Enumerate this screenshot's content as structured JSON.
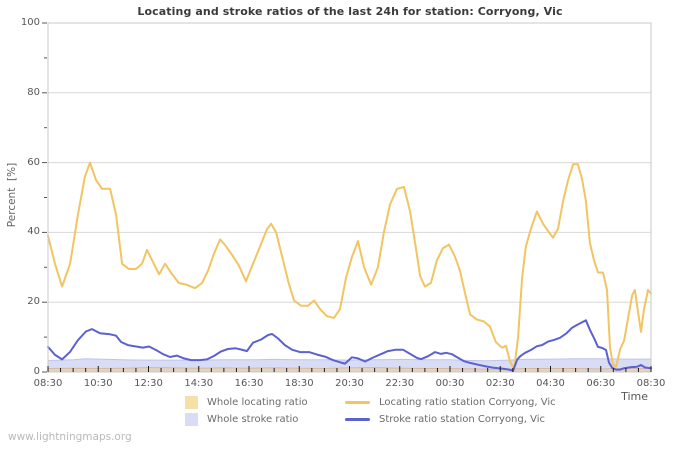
{
  "page": {
    "watermark": "www.lightningmaps.org"
  },
  "chart_data": {
    "type": "line",
    "title": "Locating and stroke ratios of the last 24h for station: Corryong, Vic",
    "xlabel": "Time",
    "ylabel": "Percent  [%]",
    "ylim": [
      0,
      100
    ],
    "x_hours_span": 24,
    "grid": "horizontal",
    "legend_position": "bottom",
    "y_ticks": [
      0,
      20,
      40,
      60,
      80,
      100
    ],
    "x_ticks": [
      "08:30",
      "10:30",
      "12:30",
      "14:30",
      "16:30",
      "18:30",
      "20:30",
      "22:30",
      "00:30",
      "02:30",
      "04:30",
      "06:30",
      "08:30"
    ],
    "colors": {
      "grid": "#d8d8d8",
      "plot_border": "#c8c8c8",
      "tick": "#1a1a1a",
      "axis_text": "#575757",
      "whole_locating_fill": "#f7dfa8",
      "whole_stroke_fill": "#d8dcf5",
      "locating_line": "#f2c462",
      "stroke_line": "#5b61cf"
    },
    "legend": [
      {
        "swatch": "area",
        "color": "#f7dfa8",
        "label": "Whole locating ratio"
      },
      {
        "swatch": "line",
        "color": "#f2c462",
        "label": "Locating ratio station Corryong, Vic"
      },
      {
        "swatch": "area",
        "color": "#d8dcf5",
        "label": "Whole stroke ratio"
      },
      {
        "swatch": "line",
        "color": "#5b61cf",
        "label": "Stroke ratio station Corryong, Vic"
      }
    ],
    "series": [
      {
        "name": "Whole stroke ratio",
        "type": "area",
        "fill": "#d8dcf5",
        "edge": "#bfc4ee",
        "points": [
          [
            0,
            3.3
          ],
          [
            1,
            3.5
          ],
          [
            1.5,
            3.8
          ],
          [
            2,
            3.7
          ],
          [
            3,
            3.5
          ],
          [
            4,
            3.4
          ],
          [
            5,
            3.4
          ],
          [
            6,
            3.4
          ],
          [
            7,
            3.5
          ],
          [
            8,
            3.5
          ],
          [
            9,
            3.6
          ],
          [
            10,
            3.5
          ],
          [
            11,
            3.5
          ],
          [
            12,
            3.4
          ],
          [
            13,
            3.5
          ],
          [
            14,
            3.6
          ],
          [
            15,
            3.5
          ],
          [
            16,
            3.5
          ],
          [
            16.8,
            3.3
          ],
          [
            17.5,
            3.2
          ],
          [
            18.3,
            3.4
          ],
          [
            19,
            3.6
          ],
          [
            20,
            3.7
          ],
          [
            21,
            3.8
          ],
          [
            22,
            3.8
          ],
          [
            23,
            3.7
          ],
          [
            24,
            3.7
          ]
        ]
      },
      {
        "name": "Whole locating ratio",
        "type": "area",
        "fill": "rgba(242,196,98,0.35)",
        "edge": "rgba(205,150,95,0.45)",
        "points": [
          [
            0,
            1
          ],
          [
            1,
            1.1
          ],
          [
            2,
            1
          ],
          [
            3,
            1.1
          ],
          [
            4,
            1.3
          ],
          [
            5,
            1.2
          ],
          [
            6,
            1.1
          ],
          [
            7,
            1.2
          ],
          [
            8,
            1.1
          ],
          [
            9,
            1.2
          ],
          [
            10,
            1.1
          ],
          [
            11,
            1
          ],
          [
            12,
            1.2
          ],
          [
            13,
            1.3
          ],
          [
            14,
            1.1
          ],
          [
            15,
            1
          ],
          [
            16,
            1
          ],
          [
            17,
            0.9
          ],
          [
            18,
            0.8
          ],
          [
            19,
            1
          ],
          [
            20,
            1
          ],
          [
            21,
            1
          ],
          [
            22,
            0.9
          ],
          [
            23,
            1
          ],
          [
            24,
            1
          ]
        ]
      },
      {
        "name": "Locating ratio station Corryong, Vic",
        "type": "line",
        "stroke": "#f2c462",
        "points": [
          [
            0,
            39
          ],
          [
            0.28,
            31
          ],
          [
            0.56,
            24.5
          ],
          [
            0.88,
            31
          ],
          [
            1.19,
            45
          ],
          [
            1.47,
            56
          ],
          [
            1.67,
            60
          ],
          [
            1.91,
            55
          ],
          [
            2.15,
            52.5
          ],
          [
            2.47,
            52.5
          ],
          [
            2.71,
            45
          ],
          [
            2.95,
            31
          ],
          [
            3.22,
            29.5
          ],
          [
            3.5,
            29.5
          ],
          [
            3.74,
            31
          ],
          [
            3.94,
            35
          ],
          [
            4.18,
            31.5
          ],
          [
            4.42,
            28
          ],
          [
            4.66,
            31
          ],
          [
            4.94,
            28
          ],
          [
            5.21,
            25.5
          ],
          [
            5.53,
            25
          ],
          [
            5.85,
            24
          ],
          [
            6.13,
            25.5
          ],
          [
            6.37,
            29
          ],
          [
            6.61,
            34
          ],
          [
            6.85,
            38
          ],
          [
            7.09,
            36
          ],
          [
            7.33,
            33.5
          ],
          [
            7.6,
            30.5
          ],
          [
            7.88,
            26
          ],
          [
            8.16,
            31
          ],
          [
            8.44,
            36
          ],
          [
            8.72,
            41
          ],
          [
            8.88,
            42.5
          ],
          [
            9.08,
            40
          ],
          [
            9.32,
            33
          ],
          [
            9.56,
            26
          ],
          [
            9.79,
            20.5
          ],
          [
            10.07,
            19
          ],
          [
            10.35,
            19
          ],
          [
            10.59,
            20.5
          ],
          [
            10.83,
            18
          ],
          [
            11.1,
            16
          ],
          [
            11.38,
            15.5
          ],
          [
            11.62,
            18
          ],
          [
            11.86,
            27
          ],
          [
            12.1,
            33
          ],
          [
            12.34,
            37.5
          ],
          [
            12.58,
            30
          ],
          [
            12.86,
            25
          ],
          [
            13.13,
            30
          ],
          [
            13.37,
            40
          ],
          [
            13.61,
            48
          ],
          [
            13.89,
            52.5
          ],
          [
            14.17,
            53
          ],
          [
            14.41,
            46
          ],
          [
            14.61,
            37
          ],
          [
            14.81,
            27.5
          ],
          [
            15,
            24.5
          ],
          [
            15.24,
            25.5
          ],
          [
            15.48,
            32
          ],
          [
            15.72,
            35.5
          ],
          [
            15.96,
            36.5
          ],
          [
            16.2,
            33
          ],
          [
            16.4,
            29
          ],
          [
            16.6,
            22.5
          ],
          [
            16.8,
            16.5
          ],
          [
            17.07,
            15
          ],
          [
            17.35,
            14.5
          ],
          [
            17.59,
            13
          ],
          [
            17.83,
            8.5
          ],
          [
            18.07,
            7
          ],
          [
            18.23,
            7.5
          ],
          [
            18.39,
            3
          ],
          [
            18.55,
            0.8
          ],
          [
            18.71,
            10
          ],
          [
            18.87,
            27
          ],
          [
            19.02,
            36
          ],
          [
            19.22,
            41
          ],
          [
            19.46,
            46
          ],
          [
            19.7,
            42.5
          ],
          [
            19.94,
            40
          ],
          [
            20.1,
            38.5
          ],
          [
            20.3,
            41
          ],
          [
            20.5,
            49
          ],
          [
            20.7,
            55
          ],
          [
            20.9,
            59.5
          ],
          [
            21.09,
            59.5
          ],
          [
            21.25,
            55.5
          ],
          [
            21.41,
            49
          ],
          [
            21.57,
            37
          ],
          [
            21.73,
            32
          ],
          [
            21.89,
            28.5
          ],
          [
            22.09,
            28.5
          ],
          [
            22.25,
            23.5
          ],
          [
            22.37,
            7
          ],
          [
            22.49,
            2
          ],
          [
            22.61,
            1.5
          ],
          [
            22.77,
            6.5
          ],
          [
            22.93,
            9
          ],
          [
            23.09,
            15.5
          ],
          [
            23.25,
            22
          ],
          [
            23.36,
            23.5
          ],
          [
            23.48,
            17.5
          ],
          [
            23.6,
            11.5
          ],
          [
            23.72,
            18
          ],
          [
            23.88,
            23.5
          ],
          [
            24,
            22.5
          ]
        ]
      },
      {
        "name": "Stroke ratio station Corryong, Vic",
        "type": "line",
        "stroke": "#5b61cf",
        "points": [
          [
            0,
            7.2
          ],
          [
            0.28,
            4.9
          ],
          [
            0.56,
            3.6
          ],
          [
            0.88,
            5.8
          ],
          [
            1.19,
            9.1
          ],
          [
            1.51,
            11.6
          ],
          [
            1.75,
            12.3
          ],
          [
            2.07,
            11.1
          ],
          [
            2.47,
            10.8
          ],
          [
            2.71,
            10.4
          ],
          [
            2.91,
            8.6
          ],
          [
            3.18,
            7.7
          ],
          [
            3.5,
            7.3
          ],
          [
            3.78,
            7
          ],
          [
            4.02,
            7.3
          ],
          [
            4.3,
            6.3
          ],
          [
            4.58,
            5.1
          ],
          [
            4.86,
            4.3
          ],
          [
            5.13,
            4.7
          ],
          [
            5.41,
            3.9
          ],
          [
            5.69,
            3.4
          ],
          [
            6.05,
            3.4
          ],
          [
            6.33,
            3.6
          ],
          [
            6.61,
            4.6
          ],
          [
            6.89,
            5.9
          ],
          [
            7.16,
            6.6
          ],
          [
            7.48,
            6.8
          ],
          [
            7.76,
            6.3
          ],
          [
            7.92,
            6
          ],
          [
            8.16,
            8.4
          ],
          [
            8.48,
            9.3
          ],
          [
            8.76,
            10.6
          ],
          [
            8.92,
            10.9
          ],
          [
            9.16,
            9.6
          ],
          [
            9.43,
            7.7
          ],
          [
            9.71,
            6.4
          ],
          [
            10.03,
            5.7
          ],
          [
            10.39,
            5.7
          ],
          [
            10.71,
            5
          ],
          [
            11.02,
            4.4
          ],
          [
            11.34,
            3.4
          ],
          [
            11.66,
            2.7
          ],
          [
            11.82,
            2.4
          ],
          [
            12.1,
            4.2
          ],
          [
            12.34,
            3.9
          ],
          [
            12.62,
            3
          ],
          [
            12.9,
            4
          ],
          [
            13.21,
            5
          ],
          [
            13.53,
            6
          ],
          [
            13.85,
            6.4
          ],
          [
            14.13,
            6.4
          ],
          [
            14.41,
            5.2
          ],
          [
            14.69,
            4
          ],
          [
            14.85,
            3.7
          ],
          [
            15.12,
            4.5
          ],
          [
            15.4,
            5.7
          ],
          [
            15.64,
            5.2
          ],
          [
            15.84,
            5.5
          ],
          [
            16.08,
            5.1
          ],
          [
            16.32,
            4.1
          ],
          [
            16.56,
            3.1
          ],
          [
            16.8,
            2.6
          ],
          [
            17.11,
            2.1
          ],
          [
            17.43,
            1.6
          ],
          [
            17.75,
            1.2
          ],
          [
            18.03,
            1
          ],
          [
            18.27,
            0.8
          ],
          [
            18.51,
            0.4
          ],
          [
            18.67,
            3.5
          ],
          [
            18.79,
            4.5
          ],
          [
            18.99,
            5.5
          ],
          [
            19.22,
            6.3
          ],
          [
            19.46,
            7.4
          ],
          [
            19.66,
            7.7
          ],
          [
            19.9,
            8.7
          ],
          [
            20.14,
            9.2
          ],
          [
            20.38,
            9.8
          ],
          [
            20.62,
            11
          ],
          [
            20.86,
            12.7
          ],
          [
            21.06,
            13.5
          ],
          [
            21.25,
            14.2
          ],
          [
            21.41,
            14.8
          ],
          [
            21.57,
            12.1
          ],
          [
            21.73,
            9.7
          ],
          [
            21.89,
            7.2
          ],
          [
            22.05,
            6.9
          ],
          [
            22.21,
            6.3
          ],
          [
            22.33,
            2.7
          ],
          [
            22.45,
            1.2
          ],
          [
            22.61,
            0.7
          ],
          [
            22.77,
            0.7
          ],
          [
            22.93,
            1.1
          ],
          [
            23.21,
            1.4
          ],
          [
            23.44,
            1.5
          ],
          [
            23.6,
            2
          ],
          [
            23.76,
            1.3
          ],
          [
            24,
            1.1
          ]
        ]
      }
    ]
  }
}
